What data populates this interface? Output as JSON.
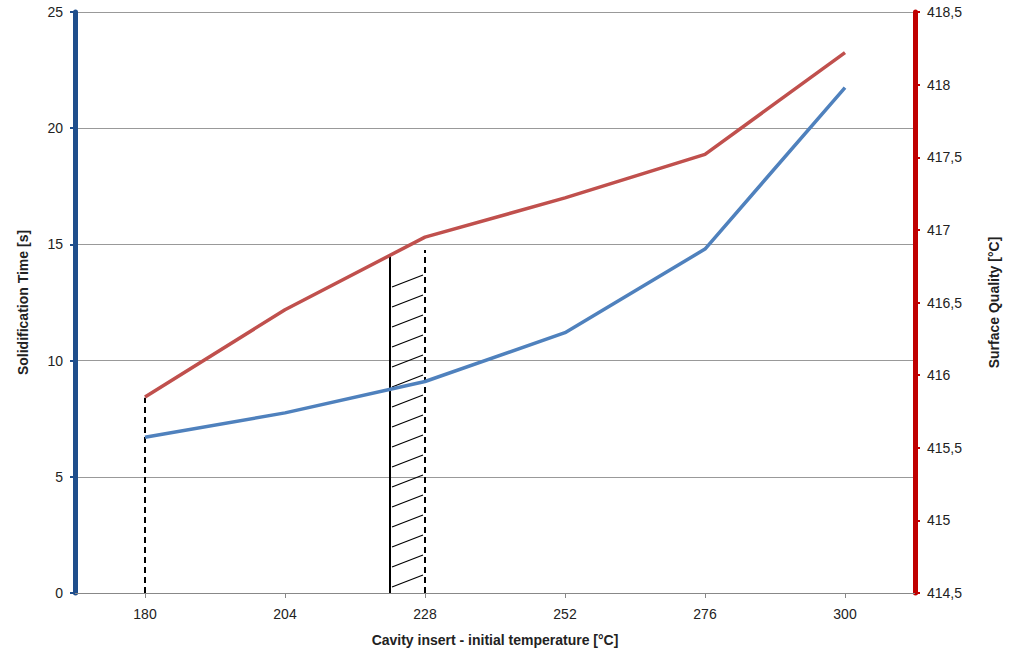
{
  "chart_data": {
    "type": "line",
    "x": [
      180,
      204,
      228,
      252,
      276,
      300
    ],
    "xlabel": "Cavity insert - initial temperature [°C]",
    "ylabel": "Solidification Time [s]",
    "y2label": "Surface Quality [°C]",
    "xlim": [
      168,
      312
    ],
    "xticks": [
      180,
      204,
      228,
      252,
      276,
      300
    ],
    "ylim": [
      0,
      25
    ],
    "yticks": [
      0,
      5,
      10,
      15,
      20,
      25
    ],
    "y2lim": [
      414.5,
      418.5
    ],
    "y2ticks": [
      {
        "value": 414.5,
        "label": "414,5"
      },
      415,
      {
        "value": 415.5,
        "label": "415,5"
      },
      416,
      {
        "value": 416.5,
        "label": "416,5"
      },
      417,
      {
        "value": 417.5,
        "label": "417,5"
      },
      418,
      {
        "value": 418.5,
        "label": "418,5"
      }
    ],
    "grid": true,
    "series": [
      {
        "color": "#4f81bd",
        "values": [
          6.7,
          7.75,
          9.1,
          11.2,
          14.8,
          21.75
        ]
      },
      {
        "color": "#c0504d",
        "axis": "y2",
        "values": [
          415.85,
          416.45,
          416.95,
          417.22,
          417.52,
          418.22
        ]
      }
    ],
    "annotations": [
      {
        "type": "vline",
        "x": 180,
        "y": [
          0,
          8.4
        ],
        "line_style": "dashed"
      },
      {
        "type": "band",
        "x": [
          222,
          228
        ],
        "y": [
          0,
          14.5
        ]
      }
    ]
  }
}
